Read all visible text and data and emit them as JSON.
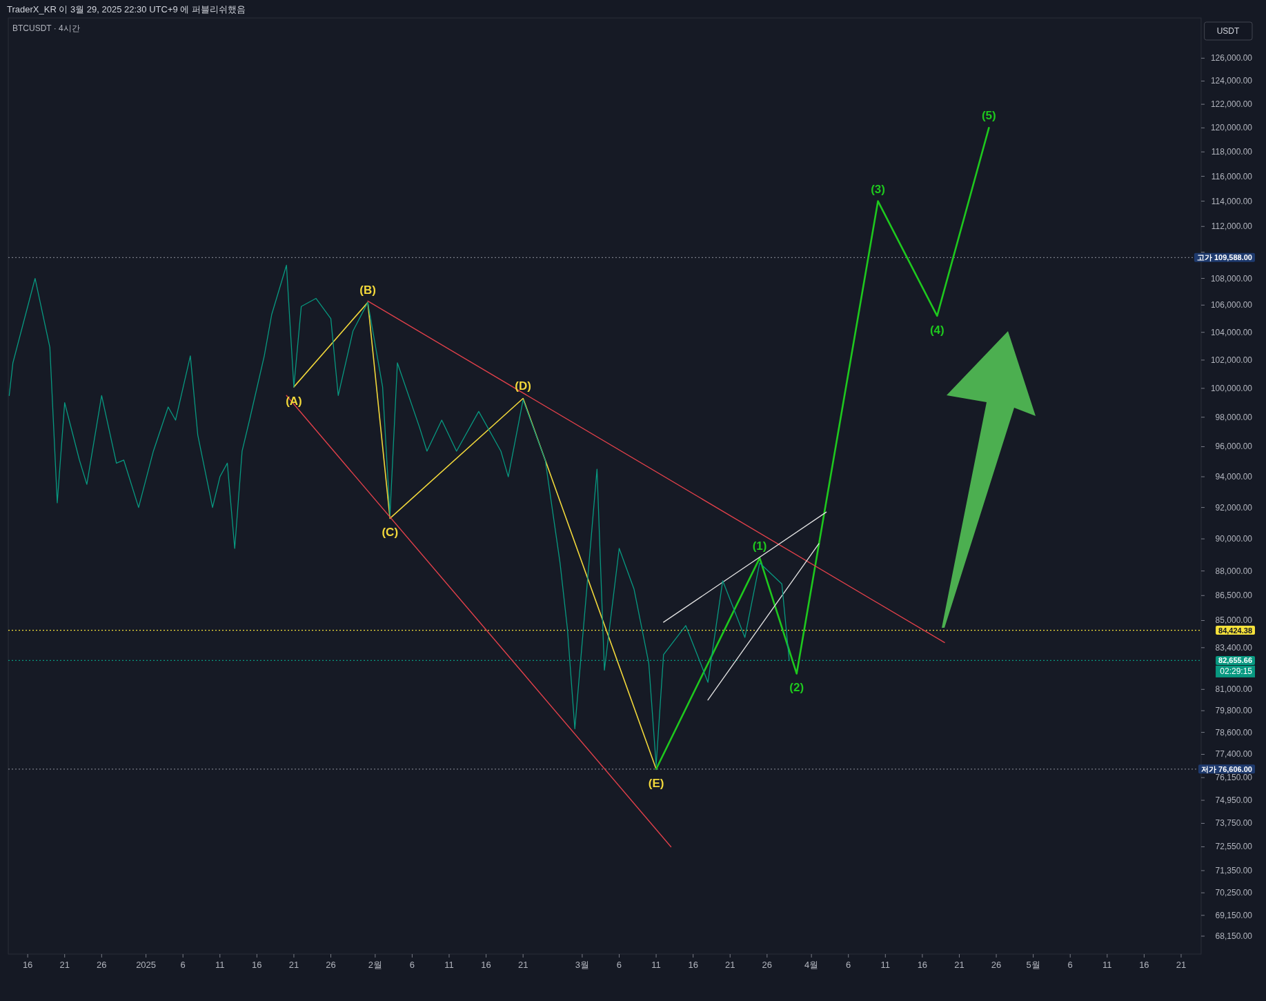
{
  "chart_data": {
    "type": "line",
    "title": "TraderX_KR 이 3월 29, 2025 22:30 UTC+9 에 퍼블리쉬했음",
    "subtitle": "BTCUSDT · 4시간",
    "ylabel": "USDT",
    "log": true,
    "xlim": [
      "2024-12-13T09:00",
      "2025-05-23T17:00"
    ],
    "ylim": [
      67300,
      129600
    ],
    "xticks": [
      {
        "value": "2024-12-16",
        "label": "16"
      },
      {
        "value": "2024-12-21",
        "label": "21"
      },
      {
        "value": "2024-12-26",
        "label": "26"
      },
      {
        "value": "2025-01-01",
        "label": "2025"
      },
      {
        "value": "2025-01-06",
        "label": "6"
      },
      {
        "value": "2025-01-11",
        "label": "11"
      },
      {
        "value": "2025-01-16",
        "label": "16"
      },
      {
        "value": "2025-01-21",
        "label": "21"
      },
      {
        "value": "2025-01-26",
        "label": "26"
      },
      {
        "value": "2025-02-01",
        "label": "2월"
      },
      {
        "value": "2025-02-06",
        "label": "6"
      },
      {
        "value": "2025-02-11",
        "label": "11"
      },
      {
        "value": "2025-02-16",
        "label": "16"
      },
      {
        "value": "2025-02-21",
        "label": "21"
      },
      {
        "value": "2025-03-01",
        "label": "3월"
      },
      {
        "value": "2025-03-06",
        "label": "6"
      },
      {
        "value": "2025-03-11",
        "label": "11"
      },
      {
        "value": "2025-03-16",
        "label": "16"
      },
      {
        "value": "2025-03-21",
        "label": "21"
      },
      {
        "value": "2025-03-26",
        "label": "26"
      },
      {
        "value": "2025-04-01",
        "label": "4월"
      },
      {
        "value": "2025-04-06",
        "label": "6"
      },
      {
        "value": "2025-04-11",
        "label": "11"
      },
      {
        "value": "2025-04-16",
        "label": "16"
      },
      {
        "value": "2025-04-21",
        "label": "21"
      },
      {
        "value": "2025-04-26",
        "label": "26"
      },
      {
        "value": "2025-05-01",
        "label": "5월"
      },
      {
        "value": "2025-05-06",
        "label": "6"
      },
      {
        "value": "2025-05-11",
        "label": "11"
      },
      {
        "value": "2025-05-16",
        "label": "16"
      },
      {
        "value": "2025-05-21",
        "label": "21"
      }
    ],
    "yticks": [
      {
        "value": 126000,
        "label": "126,000.00"
      },
      {
        "value": 124000,
        "label": "124,000.00"
      },
      {
        "value": 122000,
        "label": "122,000.00"
      },
      {
        "value": 120000,
        "label": "120,000.00"
      },
      {
        "value": 118000,
        "label": "118,000.00"
      },
      {
        "value": 116000,
        "label": "116,000.00"
      },
      {
        "value": 114000,
        "label": "114,000.00"
      },
      {
        "value": 112000,
        "label": "112,000.00"
      },
      {
        "value": 110000,
        "label": null
      },
      {
        "value": 108000,
        "label": "108,000.00"
      },
      {
        "value": 106000,
        "label": "106,000.00"
      },
      {
        "value": 104000,
        "label": "104,000.00"
      },
      {
        "value": 102000,
        "label": "102,000.00"
      },
      {
        "value": 100000,
        "label": "100,000.00"
      },
      {
        "value": 98000,
        "label": "98,000.00"
      },
      {
        "value": 96000,
        "label": "96,000.00"
      },
      {
        "value": 94000,
        "label": "94,000.00"
      },
      {
        "value": 92000,
        "label": "92,000.00"
      },
      {
        "value": 90000,
        "label": "90,000.00"
      },
      {
        "value": 88000,
        "label": "88,000.00"
      },
      {
        "value": 86500,
        "label": "86,500.00"
      },
      {
        "value": 85000,
        "label": "85,000.00"
      },
      {
        "value": 83400,
        "label": "83,400.00"
      },
      {
        "value": 81000,
        "label": "81,000.00"
      },
      {
        "value": 79800,
        "label": "79,800.00"
      },
      {
        "value": 78600,
        "label": "78,600.00"
      },
      {
        "value": 77400,
        "label": "77,400.00"
      },
      {
        "value": 76150,
        "label": "76,150.00"
      },
      {
        "value": 74950,
        "label": "74,950.00"
      },
      {
        "value": 73750,
        "label": "73,750.00"
      },
      {
        "value": 72550,
        "label": "72,550.00"
      },
      {
        "value": 71350,
        "label": "71,350.00"
      },
      {
        "value": 70250,
        "label": "70,250.00"
      },
      {
        "value": 69150,
        "label": "69,150.00"
      },
      {
        "value": 68150,
        "label": "68,150.00"
      }
    ],
    "series": [
      {
        "color": "#089981",
        "x": [
          "2024-12-13T12:00",
          "2024-12-14",
          "2024-12-16",
          "2024-12-17",
          "2024-12-19",
          "2024-12-20",
          "2024-12-21",
          "2024-12-23",
          "2024-12-24",
          "2024-12-26",
          "2024-12-28",
          "2024-12-29",
          "2024-12-31",
          "2025-01-02",
          "2025-01-04",
          "2025-01-05",
          "2025-01-07",
          "2025-01-08",
          "2025-01-10",
          "2025-01-11",
          "2025-01-12",
          "2025-01-13",
          "2025-01-14",
          "2025-01-15",
          "2025-01-17",
          "2025-01-18",
          "2025-01-20",
          "2025-01-21",
          "2025-01-22",
          "2025-01-24",
          "2025-01-26",
          "2025-01-27",
          "2025-01-29",
          "2025-01-31",
          "2025-02-02",
          "2025-02-03",
          "2025-02-04",
          "2025-02-07",
          "2025-02-08",
          "2025-02-10",
          "2025-02-12",
          "2025-02-15",
          "2025-02-18",
          "2025-02-19",
          "2025-02-21",
          "2025-02-24",
          "2025-02-26",
          "2025-02-27",
          "2025-02-28",
          "2025-03-03",
          "2025-03-04",
          "2025-03-06",
          "2025-03-08",
          "2025-03-10",
          "2025-03-11",
          "2025-03-12",
          "2025-03-15",
          "2025-03-17",
          "2025-03-18",
          "2025-03-20",
          "2025-03-23",
          "2025-03-25",
          "2025-03-28",
          "2025-03-29"
        ],
        "values": [
          99500,
          101800,
          105900,
          108000,
          102900,
          92300,
          99000,
          95100,
          93500,
          99500,
          94900,
          95100,
          92000,
          95700,
          98700,
          97800,
          102300,
          96800,
          92000,
          94000,
          94900,
          89400,
          95700,
          97800,
          102300,
          105300,
          109000,
          100100,
          105900,
          106500,
          105000,
          99500,
          104100,
          106200,
          100100,
          91500,
          101800,
          97300,
          95700,
          97800,
          95700,
          98400,
          95700,
          94000,
          99200,
          95100,
          88500,
          84500,
          78800,
          94500,
          82100,
          89400,
          86900,
          82500,
          76800,
          83000,
          84700,
          82500,
          81400,
          87400,
          84000,
          88500,
          87200,
          82650
        ]
      },
      {
        "color": "#f2d83b",
        "x": [
          "2025-01-21",
          "2025-01-31",
          "2025-02-03",
          "2025-02-21",
          "2025-03-11"
        ],
        "values": [
          100100,
          106200,
          91300,
          99300,
          76606
        ]
      },
      {
        "color": "#1ec81e",
        "x": [
          "2025-03-11",
          "2025-03-25",
          "2025-03-30",
          "2025-04-10",
          "2025-04-18",
          "2025-04-25"
        ],
        "values": [
          76606,
          88800,
          81900,
          114000,
          105200,
          120000
        ]
      },
      {
        "color": "#e0404a",
        "x": [
          "2025-01-31",
          "2025-04-19"
        ],
        "values": [
          106300,
          83700
        ]
      },
      {
        "color": "#e0404a",
        "x": [
          "2025-01-20",
          "2025-03-13"
        ],
        "values": [
          99500,
          72550
        ]
      },
      {
        "color": "#e0e0e0",
        "x": [
          "2025-03-12",
          "2025-04-03"
        ],
        "values": [
          84900,
          91700
        ]
      },
      {
        "color": "#e0e0e0",
        "x": [
          "2025-03-18",
          "2025-04-02"
        ],
        "values": [
          80400,
          89700
        ]
      }
    ],
    "ref_lines": [
      {
        "axis": "y",
        "value": 109588,
        "label": "고가 109,588.00",
        "color": "#787b86",
        "line_style": "dotted"
      },
      {
        "axis": "y",
        "value": 84424.38,
        "label": "84,424.38",
        "color": "#f5e13b",
        "line_style": "dotted"
      },
      {
        "axis": "y",
        "value": 82655.66,
        "label": "82,655.66",
        "color": "#089981",
        "line_style": "dotted"
      },
      {
        "axis": "y",
        "value": 76606,
        "label": "저가 76,606.00",
        "color": "#787b86",
        "line_style": "dotted"
      }
    ],
    "annotations": [
      {
        "text": "(A)",
        "x": "2025-01-21",
        "y": 100100
      },
      {
        "text": "(B)",
        "x": "2025-01-31",
        "y": 106200
      },
      {
        "text": "(C)",
        "x": "2025-02-03",
        "y": 91300
      },
      {
        "text": "(D)",
        "x": "2025-02-21",
        "y": 99300
      },
      {
        "text": "(E)",
        "x": "2025-03-11",
        "y": 76606
      },
      {
        "text": "(1)",
        "x": "2025-03-25",
        "y": 88800
      },
      {
        "text": "(2)",
        "x": "2025-03-30",
        "y": 81900
      },
      {
        "text": "(3)",
        "x": "2025-04-10",
        "y": 114000
      },
      {
        "text": "(4)",
        "x": "2025-04-18",
        "y": 105200
      },
      {
        "text": "(5)",
        "x": "2025-04-25",
        "y": 120000
      },
      "02:29:15"
    ]
  }
}
